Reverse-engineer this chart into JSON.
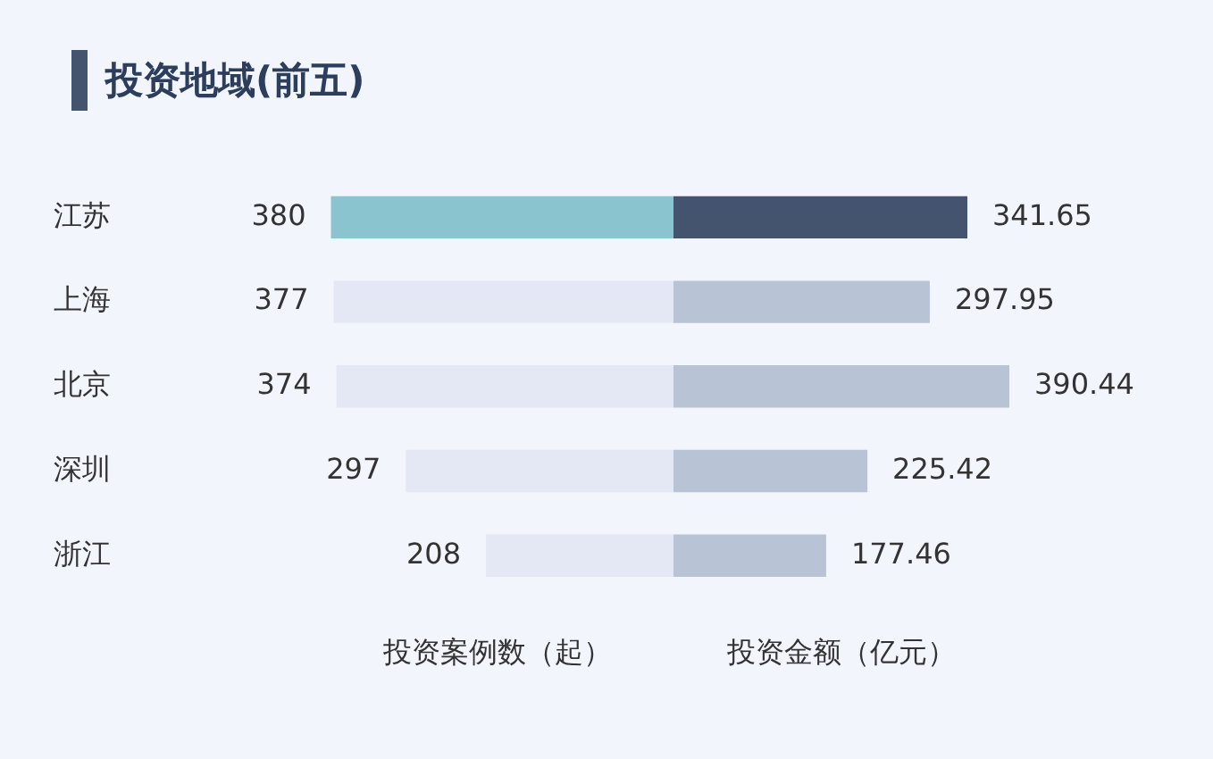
{
  "chart_data": [
    {
      "type": "bar",
      "orientation": "horizontal",
      "title": "投资地域(前五)",
      "xlabel": "投资案例数（起）",
      "categories": [
        "江苏",
        "上海",
        "北京",
        "深圳",
        "浙江"
      ],
      "values": [
        380,
        377,
        374,
        297,
        208
      ],
      "colors": [
        "#8ac4cf",
        "#e4e8f4",
        "#e4e8f4",
        "#e4e8f4",
        "#e4e8f4"
      ],
      "tick_labels": "y",
      "data_labels": true
    },
    {
      "type": "bar",
      "orientation": "horizontal",
      "xlabel": "投资金额（亿元）",
      "values": [
        341.65,
        297.95,
        390.44,
        225.42,
        177.46
      ],
      "colors": [
        "#44546f",
        "#b8c4d6",
        "#b8c4d6",
        "#b8c4d6",
        "#b8c4d6"
      ],
      "tick_labels": false,
      "data_labels": true
    }
  ]
}
